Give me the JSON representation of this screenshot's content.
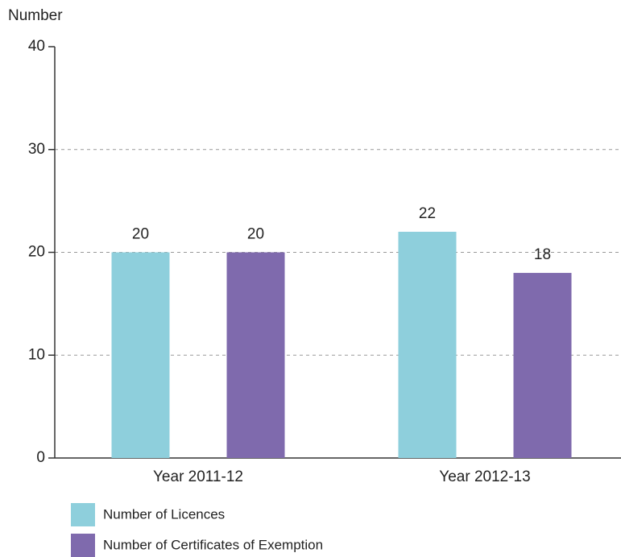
{
  "chart_data": {
    "type": "bar",
    "y_label": "Number",
    "categories": [
      "Year 2011-12",
      "Year 2012-13"
    ],
    "series": [
      {
        "name": "Number of Licences",
        "color": "#8ecfdc",
        "values": [
          20,
          22
        ]
      },
      {
        "name": "Number of Certificates of Exemption",
        "color": "#7f6aad",
        "values": [
          20,
          18
        ]
      }
    ],
    "ylim": [
      0,
      40
    ],
    "yticks": [
      0,
      10,
      20,
      30,
      40
    ],
    "grid": true,
    "legend": "bottom"
  }
}
